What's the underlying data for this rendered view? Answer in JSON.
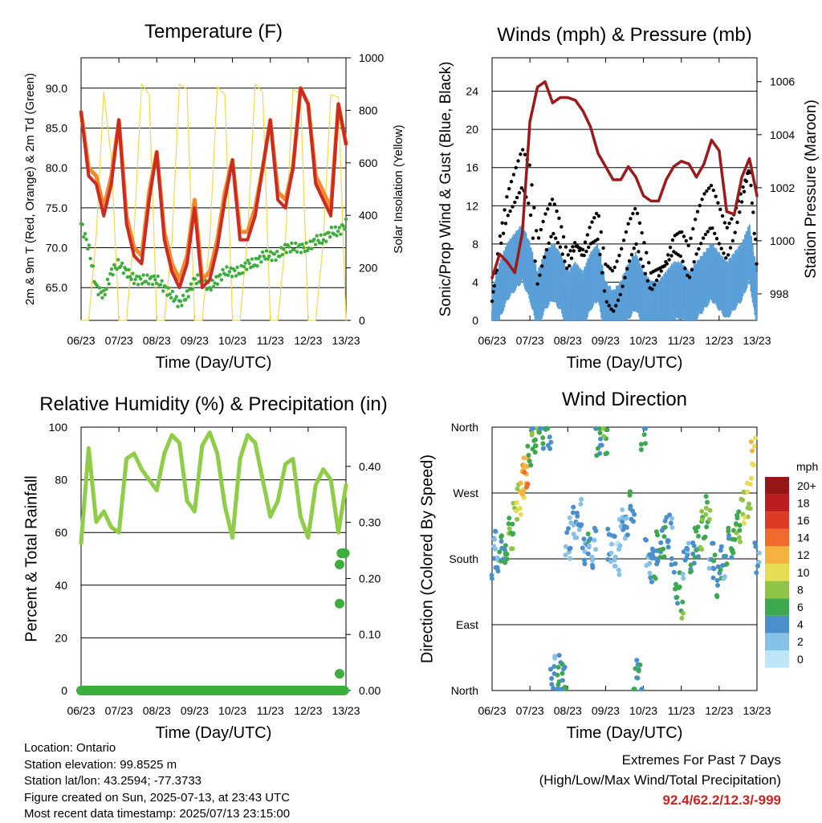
{
  "colors": {
    "temp2m": "#cc2b24",
    "temp9m": "#f08a2a",
    "dewpoint": "#3cae3c",
    "solar": "#f5d84a",
    "wind_sonic": "#5a9fd8",
    "gust": "#000000",
    "pressure": "#9b1b1b",
    "rh": "#8fcc48",
    "precip": "#3cae3c",
    "extremes": "#cc2222"
  },
  "x_ticks": [
    "06/23",
    "07/23",
    "08/23",
    "09/23",
    "10/23",
    "11/23",
    "12/23",
    "13/23"
  ],
  "chart_data": [
    {
      "id": "temperature",
      "type": "line",
      "title": "Temperature (F)",
      "xlabel": "Time (Day/UTC)",
      "ylabel": "2m & 9m T (Red, Orange) & 2m Td (Green)",
      "ylabel_right": "Solar Insolation (Yellow)",
      "ylim": [
        60.9,
        93.8
      ],
      "ylim_right": [
        0,
        1000
      ],
      "yticks": [
        65.0,
        70.0,
        75.0,
        80.0,
        85.0,
        90.0
      ],
      "yticks_right": [
        0,
        200,
        400,
        600,
        800,
        1000
      ],
      "x": [
        6.0,
        6.2,
        6.4,
        6.6,
        6.8,
        7.0,
        7.2,
        7.4,
        7.6,
        7.8,
        8.0,
        8.2,
        8.4,
        8.6,
        8.8,
        9.0,
        9.2,
        9.4,
        9.6,
        9.8,
        10.0,
        10.2,
        10.4,
        10.6,
        10.8,
        11.0,
        11.2,
        11.4,
        11.6,
        11.8,
        12.0,
        12.2,
        12.4,
        12.6,
        12.8,
        13.0
      ],
      "series": [
        {
          "name": "2m T",
          "values": [
            87,
            79,
            78,
            74,
            78,
            86,
            73,
            69,
            68,
            76,
            82,
            71,
            67,
            65,
            68,
            75,
            65,
            66,
            70,
            76,
            81,
            71,
            71,
            74,
            80,
            86,
            76,
            75,
            80,
            90,
            88,
            78,
            76,
            74,
            88,
            83
          ]
        },
        {
          "name": "9m T",
          "values": [
            87,
            80,
            79,
            75,
            79,
            86,
            74,
            70,
            69,
            77,
            82,
            72,
            68,
            66,
            69,
            76,
            66,
            67,
            71,
            77,
            81,
            72,
            72,
            75,
            80,
            86,
            77,
            76,
            80,
            90,
            88,
            79,
            77,
            75,
            88,
            83
          ]
        },
        {
          "name": "2m Td",
          "values": [
            73,
            70,
            65,
            64,
            67,
            68,
            67,
            66,
            66,
            66,
            66,
            65,
            64,
            63,
            64,
            66,
            66,
            65,
            66,
            67,
            67,
            67,
            68,
            68,
            69,
            69,
            69,
            70,
            70,
            70,
            70,
            71,
            71,
            72,
            72,
            73
          ]
        },
        {
          "name": "Solar",
          "axis": "right",
          "values": [
            0,
            0,
            320,
            870,
            620,
            0,
            0,
            330,
            900,
            860,
            0,
            0,
            300,
            900,
            880,
            0,
            0,
            310,
            890,
            860,
            0,
            0,
            320,
            900,
            870,
            0,
            0,
            300,
            880,
            860,
            0,
            0,
            300,
            860,
            850,
            0
          ]
        }
      ]
    },
    {
      "id": "winds",
      "type": "line",
      "title": "Winds (mph) & Pressure (mb)",
      "xlabel": "Time (Day/UTC)",
      "ylabel": "Sonic/Prop Wind & Gust (Blue, Black)",
      "ylabel_right": "Station Pressure (Maroon)",
      "ylim": [
        0,
        27.5
      ],
      "ylim_right": [
        997.0,
        1006.9
      ],
      "yticks": [
        0,
        4,
        8,
        12,
        16,
        20,
        24
      ],
      "yticks_right": [
        998,
        1000,
        1002,
        1004,
        1006
      ],
      "x": [
        6.0,
        6.2,
        6.4,
        6.6,
        6.8,
        7.0,
        7.2,
        7.4,
        7.6,
        7.8,
        8.0,
        8.2,
        8.4,
        8.6,
        8.8,
        9.0,
        9.2,
        9.4,
        9.6,
        9.8,
        10.0,
        10.2,
        10.4,
        10.6,
        10.8,
        11.0,
        11.2,
        11.4,
        11.6,
        11.8,
        12.0,
        12.2,
        12.4,
        12.6,
        12.8,
        13.0
      ],
      "series": [
        {
          "name": "Sonic/Prop Wind",
          "values": [
            1,
            4,
            6,
            7,
            8,
            6,
            3,
            5,
            6,
            5,
            3,
            4,
            3,
            5,
            6,
            2,
            1,
            2,
            4,
            5,
            3,
            2,
            2,
            3,
            4,
            4,
            3,
            4,
            5,
            6,
            5,
            4,
            5,
            6,
            8,
            3
          ]
        },
        {
          "name": "Gust",
          "values": [
            2,
            8,
            12,
            14,
            16,
            14,
            6,
            9,
            11,
            9,
            6,
            8,
            7,
            9,
            10,
            4,
            3,
            5,
            8,
            10,
            7,
            4,
            5,
            6,
            8,
            8,
            6,
            9,
            11,
            12,
            10,
            8,
            10,
            13,
            16,
            6
          ]
        },
        {
          "name": "Station Pressure",
          "axis": "right",
          "values": [
            998.6,
            999.5,
            999.2,
            998.8,
            1000.3,
            1004.5,
            1005.8,
            1006.0,
            1005.2,
            1005.4,
            1005.4,
            1005.3,
            1004.9,
            1004.3,
            1003.3,
            1002.8,
            1002.3,
            1002.3,
            1002.8,
            1002.4,
            1001.7,
            1001.5,
            1001.5,
            1002.3,
            1002.8,
            1003.0,
            1002.9,
            1002.4,
            1002.9,
            1003.8,
            1003.4,
            1001.1,
            1001.0,
            1002.4,
            1003.1,
            1001.7
          ]
        }
      ]
    },
    {
      "id": "humidity",
      "type": "line",
      "title": "Relative Humidity (%) & Precipitation (in)",
      "xlabel": "Time (Day/UTC)",
      "ylabel": "Percent & Total Rainfall",
      "ylim": [
        0,
        100
      ],
      "ylim_right": [
        0,
        0.47
      ],
      "yticks": [
        0,
        20,
        40,
        60,
        80,
        100
      ],
      "yticks_right": [
        "0.00",
        "0.10",
        "0.20",
        "0.30",
        "0.40"
      ],
      "x": [
        6.0,
        6.2,
        6.4,
        6.6,
        6.8,
        7.0,
        7.2,
        7.4,
        7.6,
        7.8,
        8.0,
        8.2,
        8.4,
        8.6,
        8.8,
        9.0,
        9.2,
        9.4,
        9.6,
        9.8,
        10.0,
        10.2,
        10.4,
        10.6,
        10.8,
        11.0,
        11.2,
        11.4,
        11.6,
        11.8,
        12.0,
        12.2,
        12.4,
        12.6,
        12.8,
        13.0
      ],
      "series": [
        {
          "name": "RH",
          "values": [
            56,
            92,
            64,
            68,
            62,
            60,
            88,
            90,
            84,
            80,
            76,
            90,
            97,
            94,
            72,
            68,
            93,
            98,
            90,
            70,
            58,
            88,
            97,
            94,
            80,
            66,
            72,
            86,
            88,
            66,
            58,
            78,
            84,
            80,
            60,
            78
          ]
        },
        {
          "name": "Precip",
          "axis": "right",
          "values": [
            0,
            0,
            0,
            0,
            0,
            0,
            0,
            0,
            0,
            0,
            0,
            0,
            0,
            0,
            0,
            0,
            0,
            0,
            0,
            0,
            0,
            0,
            0,
            0,
            0,
            0,
            0,
            0,
            0,
            0,
            0,
            0,
            0,
            0,
            0.03,
            0.25
          ]
        }
      ],
      "precip_points": [
        [
          12.83,
          0.03
        ],
        [
          12.83,
          0.155
        ],
        [
          12.83,
          0.225
        ],
        [
          12.88,
          0.245
        ],
        [
          12.93,
          0.245
        ],
        [
          12.97,
          0.245
        ]
      ]
    },
    {
      "id": "wind_direction",
      "type": "scatter",
      "title": "Wind Direction",
      "xlabel": "Time (Day/UTC)",
      "ylabel": "Direction (Colored By Speed)",
      "ylim": [
        0,
        360
      ],
      "yticks": [
        "North",
        "East",
        "South",
        "West",
        "North"
      ],
      "legend": {
        "title": "mph",
        "labels": [
          "0",
          "2",
          "4",
          "6",
          "8",
          "10",
          "12",
          "14",
          "16",
          "18",
          "20+"
        ],
        "colors": [
          "#bfe6f7",
          "#86c1e8",
          "#4a8fcb",
          "#3ea84e",
          "#8ec448",
          "#e6dd54",
          "#f4b240",
          "#ef6a2c",
          "#dd3a26",
          "#bb1e1e",
          "#941616"
        ]
      },
      "points_x": [
        6.05,
        6.1,
        6.2,
        6.3,
        6.4,
        6.5,
        6.6,
        6.7,
        6.8,
        6.85,
        6.9,
        7.0,
        7.1,
        7.2,
        7.3,
        7.4,
        7.5,
        7.6,
        7.7,
        7.8,
        7.9,
        8.0,
        8.1,
        8.2,
        8.3,
        8.4,
        8.5,
        8.6,
        8.7,
        8.8,
        8.9,
        9.0,
        9.1,
        9.2,
        9.3,
        9.4,
        9.5,
        9.6,
        9.7,
        9.8,
        9.9,
        10.0,
        10.1,
        10.2,
        10.3,
        10.4,
        10.5,
        10.6,
        10.7,
        10.8,
        10.9,
        11.0,
        11.1,
        11.2,
        11.3,
        11.4,
        11.5,
        11.6,
        11.7,
        11.8,
        11.9,
        12.0,
        12.1,
        12.2,
        12.3,
        12.4,
        12.5,
        12.6,
        12.7,
        12.8,
        12.9,
        13.0
      ],
      "points_y": [
        175,
        200,
        185,
        190,
        200,
        215,
        235,
        260,
        280,
        290,
        300,
        330,
        345,
        355,
        352,
        358,
        350,
        25,
        15,
        30,
        10,
        200,
        215,
        230,
        240,
        205,
        195,
        190,
        200,
        340,
        355,
        345,
        200,
        190,
        180,
        215,
        230,
        230,
        250,
        20,
        15,
        350,
        185,
        170,
        175,
        195,
        200,
        215,
        225,
        160,
        140,
        120,
        175,
        185,
        180,
        200,
        215,
        230,
        245,
        180,
        165,
        150,
        175,
        190,
        200,
        210,
        225,
        240,
        250,
        270,
        330,
        180
      ],
      "points_speed": [
        3,
        2,
        4,
        5,
        6,
        6,
        7,
        9,
        11,
        12,
        12,
        6,
        5,
        6,
        4,
        5,
        4,
        3,
        4,
        5,
        4,
        2,
        2,
        3,
        2,
        3,
        4,
        3,
        2,
        4,
        5,
        6,
        3,
        2,
        1,
        2,
        2,
        3,
        4,
        5,
        4,
        5,
        3,
        3,
        4,
        4,
        5,
        4,
        3,
        4,
        5,
        6,
        3,
        3,
        4,
        5,
        6,
        7,
        6,
        3,
        4,
        5,
        3,
        4,
        5,
        6,
        6,
        7,
        8,
        9,
        10,
        3
      ]
    }
  ],
  "info": {
    "location": "Location: Ontario",
    "elevation": "Station elevation: 99.8525 m",
    "latlon": "Station lat/lon: 43.2594; -77.3733",
    "created": "Figure created on Sun, 2025-07-13, at 23:43 UTC",
    "timestamp": "Most recent data timestamp: 2025/07/13 23:15:00"
  },
  "extremes": {
    "title": "Extremes For Past 7 Days",
    "subtitle": "(High/Low/Max Wind/Total Precipitation)",
    "values": "92.4/62.2/12.3/-999"
  }
}
